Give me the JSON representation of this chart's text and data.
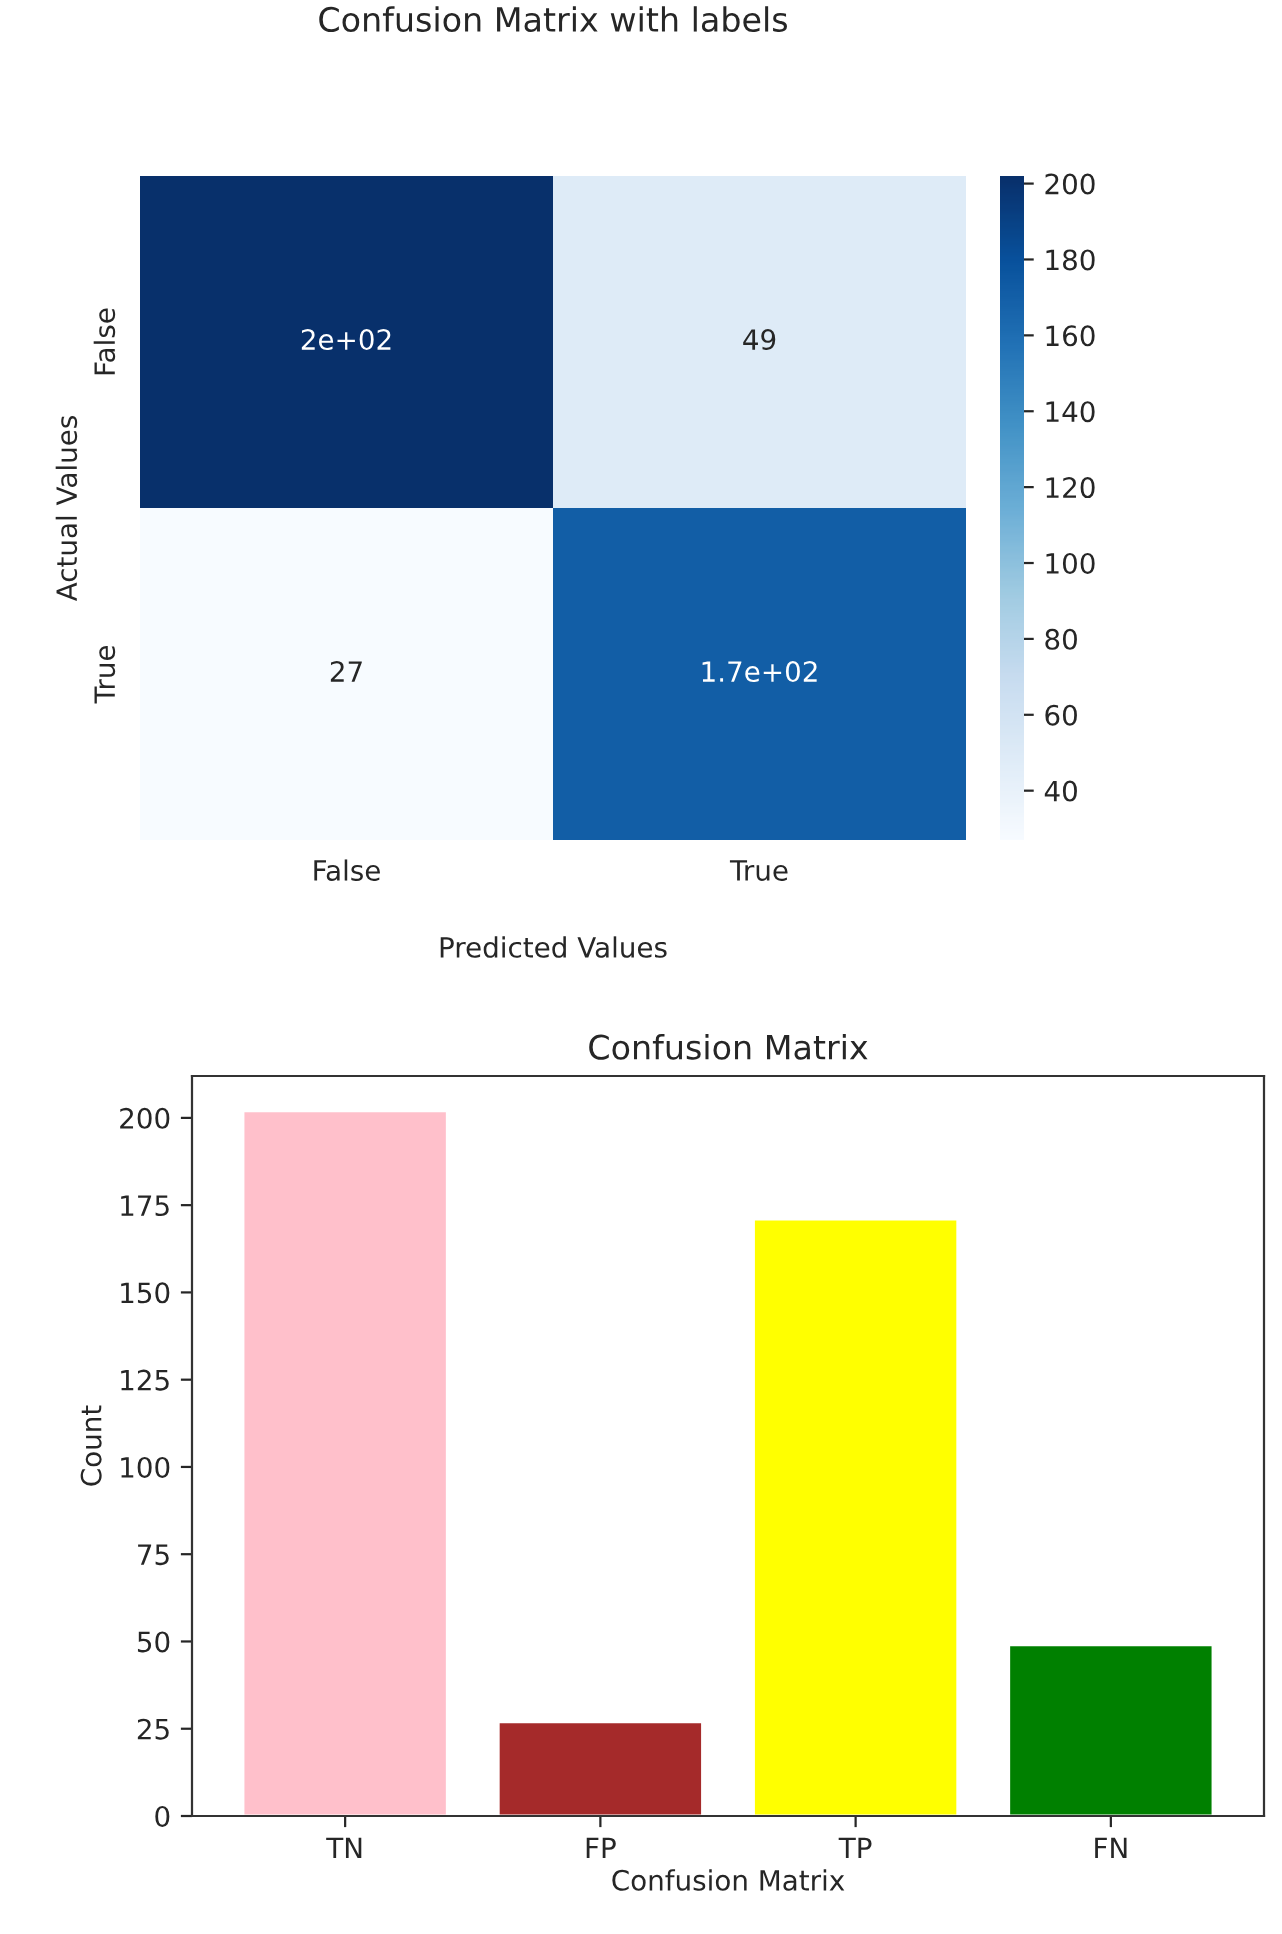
{
  "chart_data": [
    {
      "type": "heatmap",
      "title": "Confusion Matrix with labels",
      "xlabel": "Predicted Values",
      "ylabel": "Actual Values",
      "categories": [
        "False",
        "True"
      ],
      "y_categories": [
        "False",
        "True"
      ],
      "cells": [
        [
          202,
          49
        ],
        [
          27,
          171
        ]
      ],
      "cell_labels": [
        [
          "2e+02",
          "49"
        ],
        [
          "27",
          "1.7e+02"
        ]
      ],
      "clim": [
        27,
        202
      ],
      "cticks": [
        40,
        60,
        80,
        100,
        120,
        140,
        160,
        180,
        200
      ]
    },
    {
      "type": "bar",
      "title": "Confusion Matrix",
      "xlabel": "Confusion Matrix",
      "ylabel": "Count",
      "categories": [
        "TN",
        "FP",
        "TP",
        "FN"
      ],
      "values": [
        202,
        27,
        171,
        49
      ],
      "colors": [
        "#ffc0cb",
        "#a52a2a",
        "#ffff00",
        "#008000"
      ],
      "ylim": [
        0,
        212
      ],
      "yticks": [
        0,
        25,
        50,
        75,
        100,
        125,
        150,
        175,
        200
      ],
      "grid": false
    }
  ]
}
